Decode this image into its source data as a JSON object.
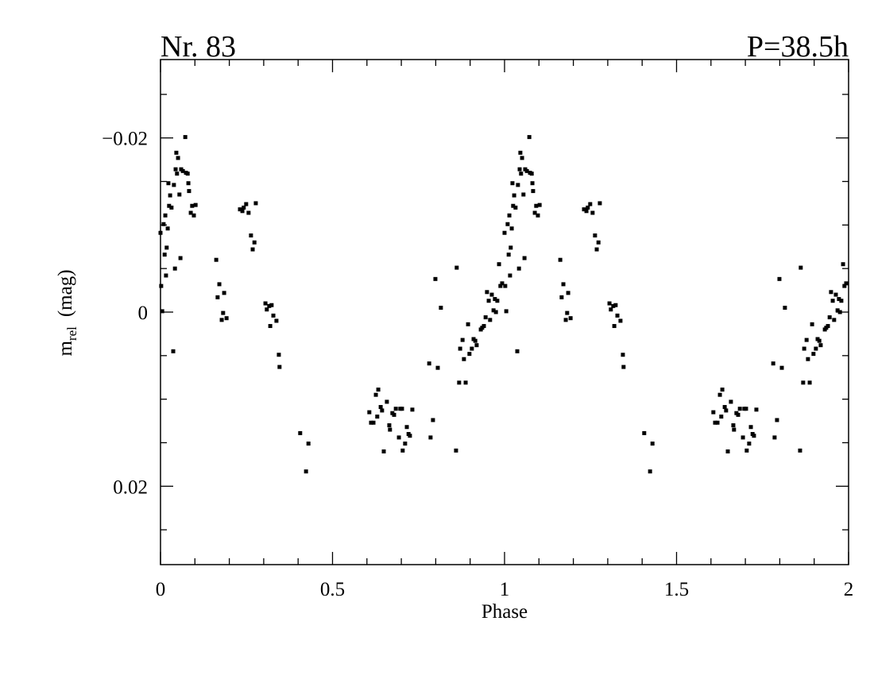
{
  "chart_data": {
    "type": "scatter",
    "title_left": "Nr. 83",
    "title_right": "P=38.5h",
    "x_label": "Phase",
    "y_label": {
      "main": "m",
      "sub": "rel",
      "unit": "(mag)"
    },
    "xlim": [
      0,
      2
    ],
    "xticks": [
      0,
      0.5,
      1,
      1.5,
      2
    ],
    "xminorticks": [
      0.1,
      0.2,
      0.3,
      0.4,
      0.6,
      0.7,
      0.8,
      0.9,
      1.1,
      1.2,
      1.3,
      1.4,
      1.6,
      1.7,
      1.8,
      1.9
    ],
    "ylim": [
      -0.029,
      0.029
    ],
    "y_inverted": true,
    "yticks": [
      {
        "value": -0.02,
        "label": "−0.02"
      },
      0,
      0.02
    ],
    "yminorticks": [
      -0.025,
      -0.015,
      -0.01,
      -0.005,
      0.005,
      0.01,
      0.015,
      0.025
    ],
    "grid": false,
    "series": [
      {
        "color": "#000000",
        "x": [
          0,
          0.002,
          0.005,
          0.009,
          0.012,
          0.014,
          0.016,
          0.018,
          0.021,
          0.023,
          0.025,
          0.028,
          0.032,
          0.037,
          0.039,
          0.042,
          0.044,
          0.046,
          0.048,
          0.051,
          0.055,
          0.058,
          0.06,
          0.065,
          0.072,
          0.074,
          0.079,
          0.081,
          0.083,
          0.088,
          0.092,
          0.097,
          0.102,
          0.162,
          0.166,
          0.171,
          0.178,
          0.182,
          0.185,
          0.192,
          0.231,
          0.238,
          0.242,
          0.249,
          0.256,
          0.263,
          0.268,
          0.273,
          0.277,
          0.305,
          0.309,
          0.316,
          0.319,
          0.323,
          0.328,
          0.337,
          0.344,
          0.346,
          0.406,
          0.423,
          0.43,
          0.607,
          0.612,
          0.619,
          0.626,
          0.63,
          0.633,
          0.64,
          0.644,
          0.649,
          0.658,
          0.665,
          0.667,
          0.674,
          0.679,
          0.684,
          0.693,
          0.697,
          0.702,
          0.704,
          0.711,
          0.716,
          0.721,
          0.725,
          0.732,
          0.781,
          0.785,
          0.792,
          0.799,
          0.806,
          0.815,
          0.859,
          0.861,
          0.868,
          0.871,
          0.878,
          0.882,
          0.887,
          0.894,
          0.898,
          0.905,
          0.91,
          0.915,
          0.919,
          0.931,
          0.935,
          0.94,
          0.945,
          0.949,
          0.954,
          0.958,
          0.963,
          0.968,
          0.972,
          0.975,
          0.979,
          0.984,
          0.988,
          0.993,
          1,
          1.002,
          1.005,
          1.009,
          1.012,
          1.014,
          1.016,
          1.018,
          1.021,
          1.023,
          1.025,
          1.028,
          1.032,
          1.037,
          1.039,
          1.042,
          1.044,
          1.046,
          1.048,
          1.051,
          1.055,
          1.058,
          1.06,
          1.065,
          1.072,
          1.074,
          1.079,
          1.081,
          1.083,
          1.088,
          1.092,
          1.097,
          1.102,
          1.162,
          1.166,
          1.171,
          1.178,
          1.182,
          1.185,
          1.192,
          1.231,
          1.238,
          1.242,
          1.249,
          1.256,
          1.263,
          1.268,
          1.273,
          1.277,
          1.305,
          1.309,
          1.316,
          1.319,
          1.323,
          1.328,
          1.337,
          1.344,
          1.346,
          1.406,
          1.423,
          1.43,
          1.607,
          1.612,
          1.619,
          1.626,
          1.63,
          1.633,
          1.64,
          1.644,
          1.649,
          1.658,
          1.665,
          1.667,
          1.674,
          1.679,
          1.684,
          1.693,
          1.697,
          1.702,
          1.704,
          1.711,
          1.716,
          1.721,
          1.725,
          1.732,
          1.781,
          1.785,
          1.792,
          1.799,
          1.806,
          1.815,
          1.859,
          1.861,
          1.868,
          1.871,
          1.878,
          1.882,
          1.887,
          1.894,
          1.898,
          1.905,
          1.91,
          1.915,
          1.919,
          1.931,
          1.935,
          1.94,
          1.945,
          1.949,
          1.954,
          1.958,
          1.963,
          1.968,
          1.972,
          1.975,
          1.979,
          1.984,
          1.988,
          1.993
        ],
        "values": [
          -0.0091,
          -0.003,
          -0.0001,
          -0.0101,
          -0.0066,
          -0.0111,
          -0.0042,
          -0.0074,
          -0.0096,
          -0.0148,
          -0.0122,
          -0.0134,
          -0.012,
          0.0045,
          -0.0146,
          -0.005,
          -0.0164,
          -0.0183,
          -0.0159,
          -0.0177,
          -0.0135,
          -0.0062,
          -0.0164,
          -0.0162,
          -0.0201,
          -0.016,
          -0.0159,
          -0.0148,
          -0.0139,
          -0.0114,
          -0.0122,
          -0.0111,
          -0.0123,
          -0.006,
          -0.0017,
          -0.0032,
          0.0009,
          0.0001,
          -0.0022,
          0.0007,
          -0.0118,
          -0.0116,
          -0.012,
          -0.0124,
          -0.0114,
          -0.0088,
          -0.0072,
          -0.008,
          -0.0125,
          -0.001,
          -0.0003,
          -0.0007,
          0.0016,
          -0.0008,
          0.0004,
          0.001,
          0.0049,
          0.0063,
          0.0139,
          0.0183,
          0.0151,
          0.0115,
          0.0127,
          0.0127,
          0.0095,
          0.012,
          0.0089,
          0.0109,
          0.0113,
          0.016,
          0.0103,
          0.013,
          0.0135,
          0.0116,
          0.0118,
          0.0111,
          0.0144,
          0.0111,
          0.0111,
          0.0159,
          0.0151,
          0.0132,
          0.014,
          0.0142,
          0.0112,
          0.0059,
          0.0144,
          0.0124,
          -0.0038,
          0.0064,
          -0.0005,
          0.0159,
          -0.0051,
          0.0081,
          0.0042,
          0.0032,
          0.0054,
          0.0081,
          0.0014,
          0.0048,
          0.0042,
          0.0031,
          0.0033,
          0.0038,
          0.002,
          0.0018,
          0.0016,
          0.0006,
          -0.0023,
          -0.0013,
          0.0009,
          -0.002,
          -0.0002,
          -0.0015,
          0,
          -0.0013,
          -0.0055,
          -0.003,
          -0.0033,
          -0.0091,
          -0.003,
          -0.0001,
          -0.0101,
          -0.0066,
          -0.0111,
          -0.0042,
          -0.0074,
          -0.0096,
          -0.0148,
          -0.0122,
          -0.0134,
          -0.012,
          0.0045,
          -0.0146,
          -0.005,
          -0.0164,
          -0.0183,
          -0.0159,
          -0.0177,
          -0.0135,
          -0.0062,
          -0.0164,
          -0.0162,
          -0.0201,
          -0.016,
          -0.0159,
          -0.0148,
          -0.0139,
          -0.0114,
          -0.0122,
          -0.0111,
          -0.0123,
          -0.006,
          -0.0017,
          -0.0032,
          0.0009,
          0.0001,
          -0.0022,
          0.0007,
          -0.0118,
          -0.0116,
          -0.012,
          -0.0124,
          -0.0114,
          -0.0088,
          -0.0072,
          -0.008,
          -0.0125,
          -0.001,
          -0.0003,
          -0.0007,
          0.0016,
          -0.0008,
          0.0004,
          0.001,
          0.0049,
          0.0063,
          0.0139,
          0.0183,
          0.0151,
          0.0115,
          0.0127,
          0.0127,
          0.0095,
          0.012,
          0.0089,
          0.0109,
          0.0113,
          0.016,
          0.0103,
          0.013,
          0.0135,
          0.0116,
          0.0118,
          0.0111,
          0.0144,
          0.0111,
          0.0111,
          0.0159,
          0.0151,
          0.0132,
          0.014,
          0.0142,
          0.0112,
          0.0059,
          0.0144,
          0.0124,
          -0.0038,
          0.0064,
          -0.0005,
          0.0159,
          -0.0051,
          0.0081,
          0.0042,
          0.0032,
          0.0054,
          0.0081,
          0.0014,
          0.0048,
          0.0042,
          0.0031,
          0.0033,
          0.0038,
          0.002,
          0.0018,
          0.0016,
          0.0006,
          -0.0023,
          -0.0013,
          0.0009,
          -0.002,
          -0.0002,
          -0.0015,
          0,
          -0.0013,
          -0.0055,
          -0.003,
          -0.0033
        ]
      }
    ]
  }
}
